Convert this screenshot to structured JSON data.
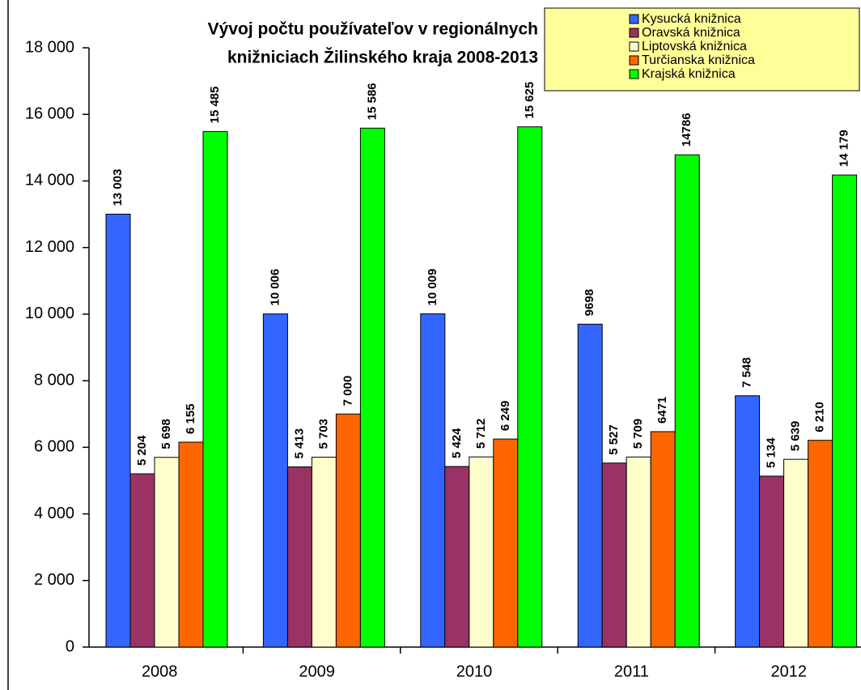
{
  "chart_data": {
    "type": "bar",
    "title": [
      "Vývoj počtu používateľov v regionálnych",
      "knižniciach Žilinského kraja 2008-2013"
    ],
    "categories": [
      "2008",
      "2009",
      "2010",
      "2011",
      "2012"
    ],
    "series": [
      {
        "name": "Kysucká knižnica",
        "color": "#3366ff",
        "values": [
          13003,
          10006,
          10009,
          9698,
          7548
        ],
        "value_labels": [
          "13 003",
          "10 006",
          "10 009",
          "9698",
          "7 548"
        ]
      },
      {
        "name": "Oravská knižnica",
        "color": "#993366",
        "values": [
          5204,
          5413,
          5424,
          5527,
          5134
        ],
        "value_labels": [
          "5 204",
          "5 413",
          "5 424",
          "5 527",
          "5 134"
        ]
      },
      {
        "name": "Liptovská knižnica",
        "color": "#ffffcc",
        "values": [
          5698,
          5703,
          5712,
          5709,
          5639
        ],
        "value_labels": [
          "5 698",
          "5 703",
          "5 712",
          "5 709",
          "5 639"
        ]
      },
      {
        "name": "Turčianska knižnica",
        "color": "#ff6600",
        "values": [
          6155,
          7000,
          6249,
          6471,
          6210
        ],
        "value_labels": [
          "6 155",
          "7 000",
          "6 249",
          "6471",
          "6 210"
        ]
      },
      {
        "name": "Krajská knižnica",
        "color": "#00ff00",
        "values": [
          15485,
          15586,
          15625,
          14786,
          14179
        ],
        "value_labels": [
          "15 485",
          "15 586",
          "15 625",
          "14786",
          "14 179"
        ]
      }
    ],
    "ylim": [
      0,
      18000
    ],
    "yticks": [
      0,
      {
        "value": 2000,
        "label": "2 000"
      },
      {
        "value": 4000,
        "label": "4 000"
      },
      {
        "value": 6000,
        "label": "6 000"
      },
      {
        "value": 8000,
        "label": "8 000"
      },
      {
        "value": 10000,
        "label": "10 000"
      },
      {
        "value": 12000,
        "label": "12 000"
      },
      {
        "value": 14000,
        "label": "14 000"
      },
      {
        "value": 16000,
        "label": "16 000"
      },
      {
        "value": 18000,
        "label": "18 000"
      }
    ],
    "legend": "top-right"
  }
}
